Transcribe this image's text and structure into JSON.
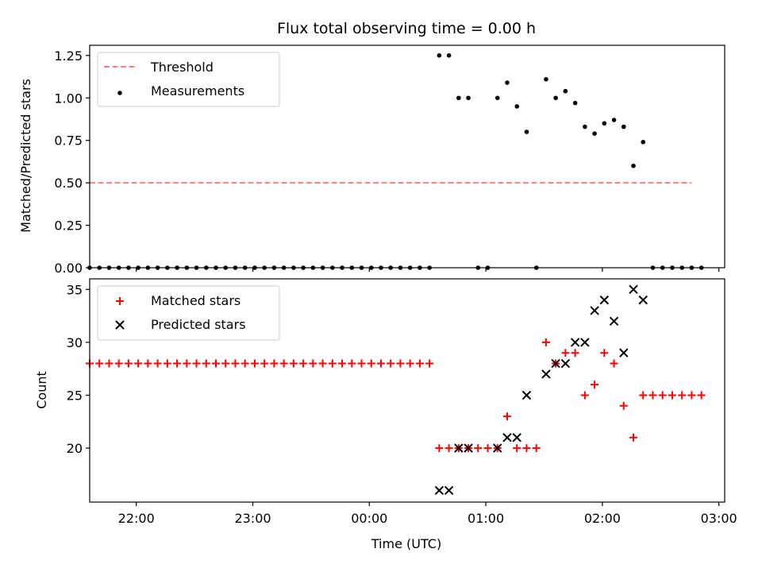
{
  "title": "Flux total observing time = 0.00 h",
  "colors": {
    "threshold": "#ff7f7f",
    "measurement": "#000000",
    "matched": "#ff0000",
    "predicted": "#000000",
    "frame": "#000000"
  },
  "chart_data": [
    {
      "type": "scatter",
      "panel": "top",
      "ylabel": "Matched/Predicted stars",
      "xlabel": "",
      "xlim": [
        "21:36",
        "03:03"
      ],
      "ylim": [
        0,
        1.31
      ],
      "yticks": [
        "0.00",
        "0.25",
        "0.50",
        "0.75",
        "1.00",
        "1.25"
      ],
      "ytick_values": [
        0,
        0.25,
        0.5,
        0.75,
        1.0,
        1.25
      ],
      "xticks": [
        "22:00",
        "23:00",
        "00:00",
        "01:00",
        "02:00",
        "03:00"
      ],
      "xticks_labeled": false,
      "legend": {
        "placement": "upper-left",
        "entries": [
          "Threshold",
          "Measurements"
        ]
      },
      "series": [
        {
          "name": "Threshold",
          "style": "dashed-line",
          "x": [
            "21:36",
            "02:46"
          ],
          "y": [
            0.5,
            0.5
          ]
        },
        {
          "name": "Measurements",
          "style": "dot",
          "points": [
            [
              "21:36",
              0
            ],
            [
              "21:41",
              0
            ],
            [
              "21:46",
              0
            ],
            [
              "21:51",
              0
            ],
            [
              "21:56",
              0
            ],
            [
              "22:01",
              0
            ],
            [
              "22:06",
              0
            ],
            [
              "22:11",
              0
            ],
            [
              "22:16",
              0
            ],
            [
              "22:21",
              0
            ],
            [
              "22:26",
              0
            ],
            [
              "22:31",
              0
            ],
            [
              "22:36",
              0
            ],
            [
              "22:41",
              0
            ],
            [
              "22:46",
              0
            ],
            [
              "22:51",
              0
            ],
            [
              "22:56",
              0
            ],
            [
              "23:01",
              0
            ],
            [
              "23:06",
              0
            ],
            [
              "23:11",
              0
            ],
            [
              "23:16",
              0
            ],
            [
              "23:21",
              0
            ],
            [
              "23:26",
              0
            ],
            [
              "23:31",
              0
            ],
            [
              "23:36",
              0
            ],
            [
              "23:41",
              0
            ],
            [
              "23:46",
              0
            ],
            [
              "23:51",
              0
            ],
            [
              "23:56",
              0
            ],
            [
              "00:01",
              0
            ],
            [
              "00:06",
              0
            ],
            [
              "00:11",
              0
            ],
            [
              "00:16",
              0
            ],
            [
              "00:21",
              0
            ],
            [
              "00:26",
              0
            ],
            [
              "00:31",
              0
            ],
            [
              "00:36",
              1.25
            ],
            [
              "00:41",
              1.25
            ],
            [
              "00:46",
              1.0
            ],
            [
              "00:51",
              1.0
            ],
            [
              "00:56",
              0
            ],
            [
              "01:01",
              0
            ],
            [
              "01:06",
              1.0
            ],
            [
              "01:11",
              1.09
            ],
            [
              "01:16",
              0.95
            ],
            [
              "01:21",
              0.8
            ],
            [
              "01:26",
              0
            ],
            [
              "01:31",
              1.11
            ],
            [
              "01:36",
              1.0
            ],
            [
              "01:41",
              1.04
            ],
            [
              "01:46",
              0.97
            ],
            [
              "01:51",
              0.83
            ],
            [
              "01:56",
              0.79
            ],
            [
              "02:01",
              0.85
            ],
            [
              "02:06",
              0.87
            ],
            [
              "02:11",
              0.83
            ],
            [
              "02:16",
              0.6
            ],
            [
              "02:21",
              0.74
            ],
            [
              "02:26",
              0
            ],
            [
              "02:31",
              0
            ],
            [
              "02:36",
              0
            ],
            [
              "02:41",
              0
            ],
            [
              "02:46",
              0
            ],
            [
              "02:51",
              0
            ]
          ]
        }
      ]
    },
    {
      "type": "scatter",
      "panel": "bottom",
      "ylabel": "Count",
      "xlabel": "Time (UTC)",
      "xlim": [
        "21:36",
        "03:03"
      ],
      "ylim": [
        14.9,
        36.0
      ],
      "yticks": [
        "20",
        "25",
        "30",
        "35"
      ],
      "ytick_values": [
        20,
        25,
        30,
        35
      ],
      "xticks": [
        "22:00",
        "23:00",
        "00:00",
        "01:00",
        "02:00",
        "03:00"
      ],
      "xticks_labeled": true,
      "legend": {
        "placement": "upper-left",
        "entries": [
          "Matched stars",
          "Predicted stars"
        ]
      },
      "series": [
        {
          "name": "Matched stars",
          "marker": "+",
          "points": [
            [
              "21:36",
              28
            ],
            [
              "21:41",
              28
            ],
            [
              "21:46",
              28
            ],
            [
              "21:51",
              28
            ],
            [
              "21:56",
              28
            ],
            [
              "22:01",
              28
            ],
            [
              "22:06",
              28
            ],
            [
              "22:11",
              28
            ],
            [
              "22:16",
              28
            ],
            [
              "22:21",
              28
            ],
            [
              "22:26",
              28
            ],
            [
              "22:31",
              28
            ],
            [
              "22:36",
              28
            ],
            [
              "22:41",
              28
            ],
            [
              "22:46",
              28
            ],
            [
              "22:51",
              28
            ],
            [
              "22:56",
              28
            ],
            [
              "23:01",
              28
            ],
            [
              "23:06",
              28
            ],
            [
              "23:11",
              28
            ],
            [
              "23:16",
              28
            ],
            [
              "23:21",
              28
            ],
            [
              "23:26",
              28
            ],
            [
              "23:31",
              28
            ],
            [
              "23:36",
              28
            ],
            [
              "23:41",
              28
            ],
            [
              "23:46",
              28
            ],
            [
              "23:51",
              28
            ],
            [
              "23:56",
              28
            ],
            [
              "00:01",
              28
            ],
            [
              "00:06",
              28
            ],
            [
              "00:11",
              28
            ],
            [
              "00:16",
              28
            ],
            [
              "00:21",
              28
            ],
            [
              "00:26",
              28
            ],
            [
              "00:31",
              28
            ],
            [
              "00:36",
              20
            ],
            [
              "00:41",
              20
            ],
            [
              "00:46",
              20
            ],
            [
              "00:51",
              20
            ],
            [
              "00:56",
              20
            ],
            [
              "01:01",
              20
            ],
            [
              "01:06",
              20
            ],
            [
              "01:11",
              23
            ],
            [
              "01:16",
              20
            ],
            [
              "01:21",
              20
            ],
            [
              "01:26",
              20
            ],
            [
              "01:31",
              30
            ],
            [
              "01:36",
              28
            ],
            [
              "01:41",
              29
            ],
            [
              "01:46",
              29
            ],
            [
              "01:51",
              25
            ],
            [
              "01:56",
              26
            ],
            [
              "02:01",
              29
            ],
            [
              "02:06",
              28
            ],
            [
              "02:11",
              24
            ],
            [
              "02:16",
              21
            ],
            [
              "02:21",
              25
            ],
            [
              "02:26",
              25
            ],
            [
              "02:31",
              25
            ],
            [
              "02:36",
              25
            ],
            [
              "02:41",
              25
            ],
            [
              "02:46",
              25
            ],
            [
              "02:51",
              25
            ]
          ]
        },
        {
          "name": "Predicted stars",
          "marker": "x",
          "points": [
            [
              "00:36",
              16
            ],
            [
              "00:41",
              16
            ],
            [
              "00:46",
              20
            ],
            [
              "00:51",
              20
            ],
            [
              "01:06",
              20
            ],
            [
              "01:11",
              21
            ],
            [
              "01:16",
              21
            ],
            [
              "01:21",
              25
            ],
            [
              "01:31",
              27
            ],
            [
              "01:36",
              28
            ],
            [
              "01:41",
              28
            ],
            [
              "01:46",
              30
            ],
            [
              "01:51",
              30
            ],
            [
              "01:56",
              33
            ],
            [
              "02:01",
              34
            ],
            [
              "02:06",
              32
            ],
            [
              "02:11",
              29
            ],
            [
              "02:16",
              35
            ],
            [
              "02:21",
              34
            ]
          ]
        }
      ]
    }
  ]
}
